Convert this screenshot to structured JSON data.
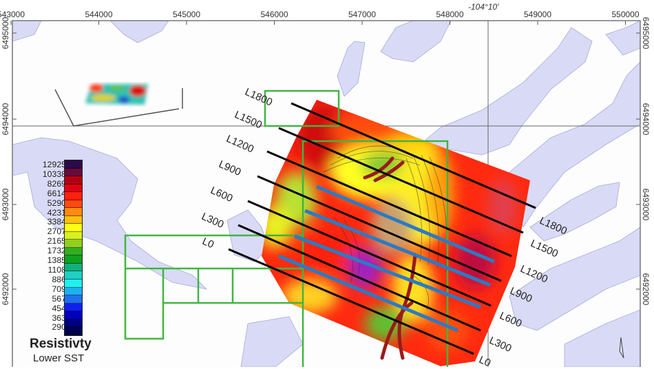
{
  "map": {
    "top_axis_labels": [
      "543000",
      "544000",
      "545000",
      "546000",
      "547000",
      "548000",
      "549000",
      "550000"
    ],
    "left_axis_labels": [
      "6495000",
      "6494000",
      "6493000",
      "6492000"
    ],
    "right_axis_labels": [
      "6495000",
      "6494000",
      "6493000",
      "6492000"
    ],
    "graticule_label": "-104°10'",
    "survey_lines": [
      "L1800",
      "L1500",
      "L1200",
      "L900",
      "L600",
      "L300",
      "L0"
    ],
    "colors": {
      "water": "#d9dbf6",
      "survey_line": "#000000",
      "target_line": "#2b7bc4",
      "claim_boundary": "#3fb63f",
      "conductor": "#9b1b1b"
    }
  },
  "legend": {
    "title": "Resistivty",
    "subtitle": "Lower SST",
    "values": [
      "12925",
      "10338",
      "8269",
      "6614",
      "5290",
      "4231",
      "3384",
      "2707",
      "2165",
      "1732",
      "1385",
      "1108",
      "886",
      "709",
      "567",
      "454",
      "363",
      "290"
    ],
    "colors": [
      "#2b0a4a",
      "#6a0a3a",
      "#b00010",
      "#e00010",
      "#ff2010",
      "#ff4a10",
      "#ff8a10",
      "#ffc010",
      "#ffff10",
      "#d8f020",
      "#90d020",
      "#30b020",
      "#10a020",
      "#10b080",
      "#20d0c0",
      "#20f0f0",
      "#20b0f0",
      "#2070f0",
      "#1020f0",
      "#0000c0",
      "#000080",
      "#000050"
    ]
  }
}
